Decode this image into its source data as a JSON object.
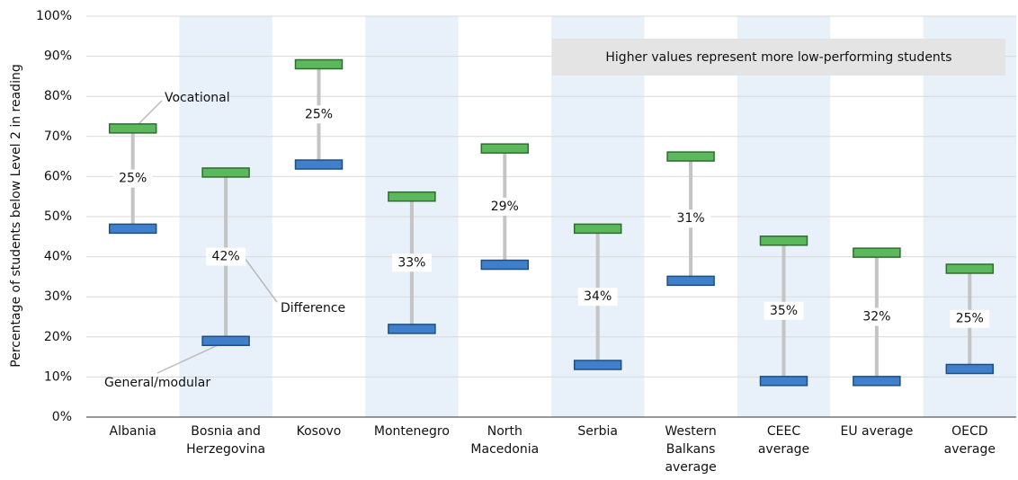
{
  "chart_data": {
    "type": "range",
    "y_axis_label": "Percentage of students below Level 2 in reading",
    "note": "Higher values represent more low-performing students",
    "categories": [
      [
        "Albania"
      ],
      [
        "Bosnia and",
        "Herzegovina"
      ],
      [
        "Kosovo"
      ],
      [
        "Montenegro"
      ],
      [
        "North",
        "Macedonia"
      ],
      [
        "Serbia"
      ],
      [
        "Western",
        "Balkans",
        "average"
      ],
      [
        "CEEC",
        "average"
      ],
      [
        "EU average"
      ],
      [
        "OECD",
        "average"
      ]
    ],
    "series": [
      {
        "name": "General/modular",
        "color": "#3f7fcc",
        "values": [
          47,
          19,
          63,
          22,
          38,
          13,
          34,
          9,
          9,
          12
        ]
      },
      {
        "name": "Vocational",
        "color": "#5cb85c",
        "values": [
          72,
          61,
          88,
          55,
          67,
          47,
          65,
          44,
          41,
          37
        ]
      }
    ],
    "differences": {
      "name": "Difference",
      "color": "#c4c4c4",
      "values": [
        25,
        42,
        25,
        33,
        29,
        34,
        31,
        35,
        32,
        25
      ],
      "value_labels": [
        "25%",
        "42%",
        "25%",
        "33%",
        "29%",
        "34%",
        "31%",
        "35%",
        "32%",
        "25%"
      ]
    },
    "ylim": [
      0,
      100
    ],
    "yticks": [
      {
        "value": 0,
        "label": "0%"
      },
      {
        "value": 10,
        "label": "10%"
      },
      {
        "value": 20,
        "label": "20%"
      },
      {
        "value": 30,
        "label": "30%"
      },
      {
        "value": 40,
        "label": "40%"
      },
      {
        "value": 50,
        "label": "50%"
      },
      {
        "value": 60,
        "label": "60%"
      },
      {
        "value": 70,
        "label": "70%"
      },
      {
        "value": 80,
        "label": "80%"
      },
      {
        "value": 90,
        "label": "90%"
      },
      {
        "value": 100,
        "label": "100%"
      }
    ],
    "grid": true,
    "band_color": "#e8f0f9"
  }
}
